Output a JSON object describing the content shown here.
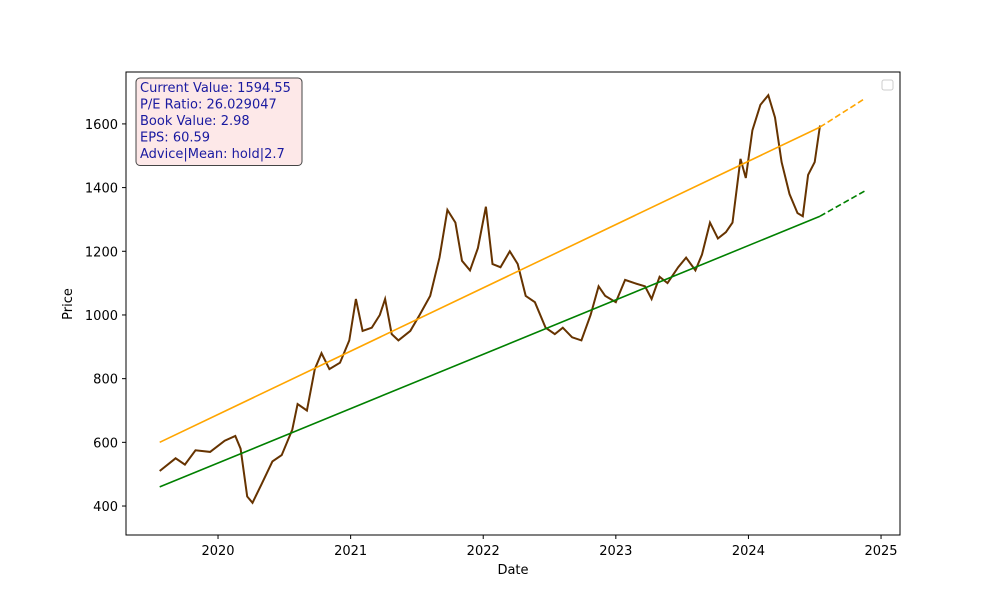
{
  "chart_data": {
    "type": "line",
    "xlabel": "Date",
    "ylabel": "Price",
    "xlim": [
      2019.306,
      2025.143
    ],
    "ylim": [
      309,
      1763
    ],
    "xticks": [
      2020,
      2021,
      2022,
      2023,
      2024,
      2025
    ],
    "yticks": [
      400,
      600,
      800,
      1000,
      1200,
      1400,
      1600
    ],
    "legend": "upper right",
    "annotation_lines": [
      "Current Value: 1594.55",
      "P/E Ratio: 26.029047",
      "Book Value: 2.98",
      "EPS: 60.59",
      "Advice|Mean: hold|2.7"
    ],
    "series": [
      {
        "color": "#663300",
        "linestyle": "solid",
        "x": [
          2019.56,
          2019.68,
          2019.75,
          2019.83,
          2019.94,
          2020.05,
          2020.13,
          2020.17,
          2020.22,
          2020.26,
          2020.33,
          2020.41,
          2020.48,
          2020.56,
          2020.6,
          2020.67,
          2020.73,
          2020.78,
          2020.84,
          2020.92,
          2020.99,
          2021.04,
          2021.09,
          2021.16,
          2021.22,
          2021.26,
          2021.31,
          2021.36,
          2021.45,
          2021.52,
          2021.6,
          2021.67,
          2021.73,
          2021.79,
          2021.84,
          2021.9,
          2021.96,
          2022.02,
          2022.07,
          2022.13,
          2022.2,
          2022.26,
          2022.32,
          2022.39,
          2022.47,
          2022.54,
          2022.6,
          2022.67,
          2022.74,
          2022.81,
          2022.87,
          2022.92,
          2023.0,
          2023.07,
          2023.14,
          2023.22,
          2023.27,
          2023.33,
          2023.39,
          2023.47,
          2023.53,
          2023.6,
          2023.65,
          2023.71,
          2023.77,
          2023.83,
          2023.88,
          2023.94,
          2023.98,
          2024.03,
          2024.09,
          2024.15,
          2024.2,
          2024.25,
          2024.31,
          2024.37,
          2024.41,
          2024.45,
          2024.5,
          2024.54
        ],
        "values": [
          510,
          550,
          530,
          575,
          570,
          605,
          620,
          580,
          430,
          410,
          470,
          540,
          560,
          640,
          720,
          700,
          830,
          880,
          830,
          850,
          920,
          1050,
          950,
          960,
          1000,
          1050,
          940,
          920,
          950,
          1000,
          1060,
          1180,
          1330,
          1290,
          1170,
          1140,
          1210,
          1340,
          1160,
          1150,
          1200,
          1160,
          1060,
          1040,
          960,
          940,
          960,
          930,
          920,
          1000,
          1090,
          1060,
          1040,
          1110,
          1100,
          1090,
          1050,
          1120,
          1100,
          1150,
          1180,
          1140,
          1190,
          1290,
          1240,
          1260,
          1290,
          1490,
          1430,
          1580,
          1660,
          1690,
          1620,
          1480,
          1380,
          1320,
          1310,
          1440,
          1480,
          1595
        ]
      },
      {
        "color": "#ffa500",
        "linestyle": "solid",
        "x": [
          2019.56,
          2024.54
        ],
        "values": [
          600,
          1590
        ]
      },
      {
        "color": "#ffa500",
        "linestyle": "dashed",
        "x": [
          2024.54,
          2024.88
        ],
        "values": [
          1590,
          1680
        ]
      },
      {
        "color": "#008000",
        "linestyle": "solid",
        "x": [
          2019.56,
          2024.54
        ],
        "values": [
          460,
          1310
        ]
      },
      {
        "color": "#008000",
        "linestyle": "dashed",
        "x": [
          2024.54,
          2024.88
        ],
        "values": [
          1310,
          1390
        ]
      }
    ]
  }
}
